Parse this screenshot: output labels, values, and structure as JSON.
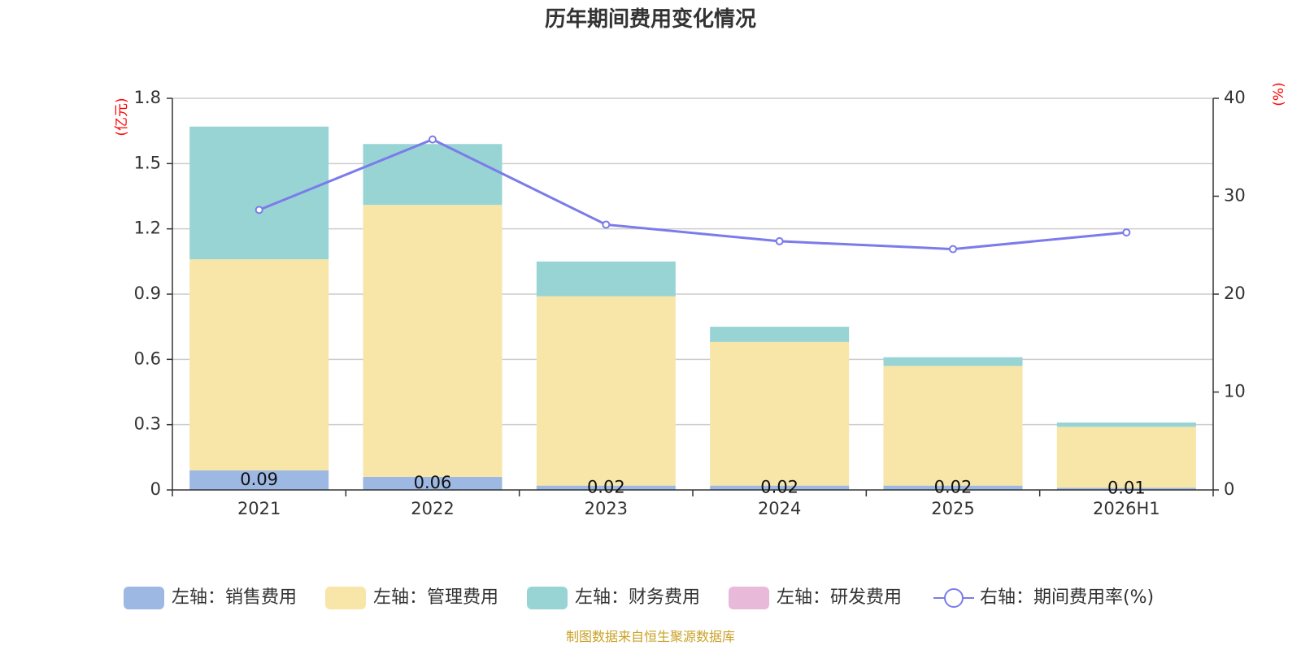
{
  "chart_data": {
    "type": "bar",
    "stacked": true,
    "title": "历年期间费用变化情况",
    "categories": [
      "2021",
      "2022",
      "2023",
      "2024",
      "2025",
      "2026H1"
    ],
    "left_axis": {
      "unit": "(亿元)",
      "ylim": [
        0,
        1.8
      ],
      "ticks": [
        "0",
        "0.3",
        "0.6",
        "0.9",
        "1.2",
        "1.5",
        "1.8"
      ]
    },
    "right_axis": {
      "unit": "(%)",
      "ylim": [
        0,
        40
      ],
      "ticks": [
        "0",
        "10",
        "20",
        "30",
        "40"
      ]
    },
    "grid": true,
    "legend_position": "bottom",
    "series": [
      {
        "name": "左轴：销售费用",
        "type": "bar",
        "axis": "left",
        "color": "#9db8e2",
        "values": [
          0.09,
          0.06,
          0.02,
          0.02,
          0.02,
          0.01
        ],
        "labels": [
          "0.09",
          "0.06",
          "0.02",
          "0.02",
          "0.02",
          "0.01"
        ]
      },
      {
        "name": "左轴：管理费用",
        "type": "bar",
        "axis": "left",
        "color": "#f7e6a8",
        "values": [
          0.97,
          1.25,
          0.87,
          0.66,
          0.55,
          0.28
        ]
      },
      {
        "name": "左轴：财务费用",
        "type": "bar",
        "axis": "left",
        "color": "#98d4d4",
        "values": [
          0.61,
          0.28,
          0.16,
          0.07,
          0.04,
          0.02
        ]
      },
      {
        "name": "左轴：研发费用",
        "type": "bar",
        "axis": "left",
        "color": "#e8b9d9",
        "values": [
          0,
          0,
          0,
          0,
          0,
          0
        ]
      },
      {
        "name": "右轴：期间费用率(%)",
        "type": "line",
        "axis": "right",
        "color": "#7b7bea",
        "values": [
          28.6,
          35.8,
          27.1,
          25.4,
          24.6,
          26.3
        ]
      }
    ]
  },
  "source": "制图数据来自恒生聚源数据库"
}
